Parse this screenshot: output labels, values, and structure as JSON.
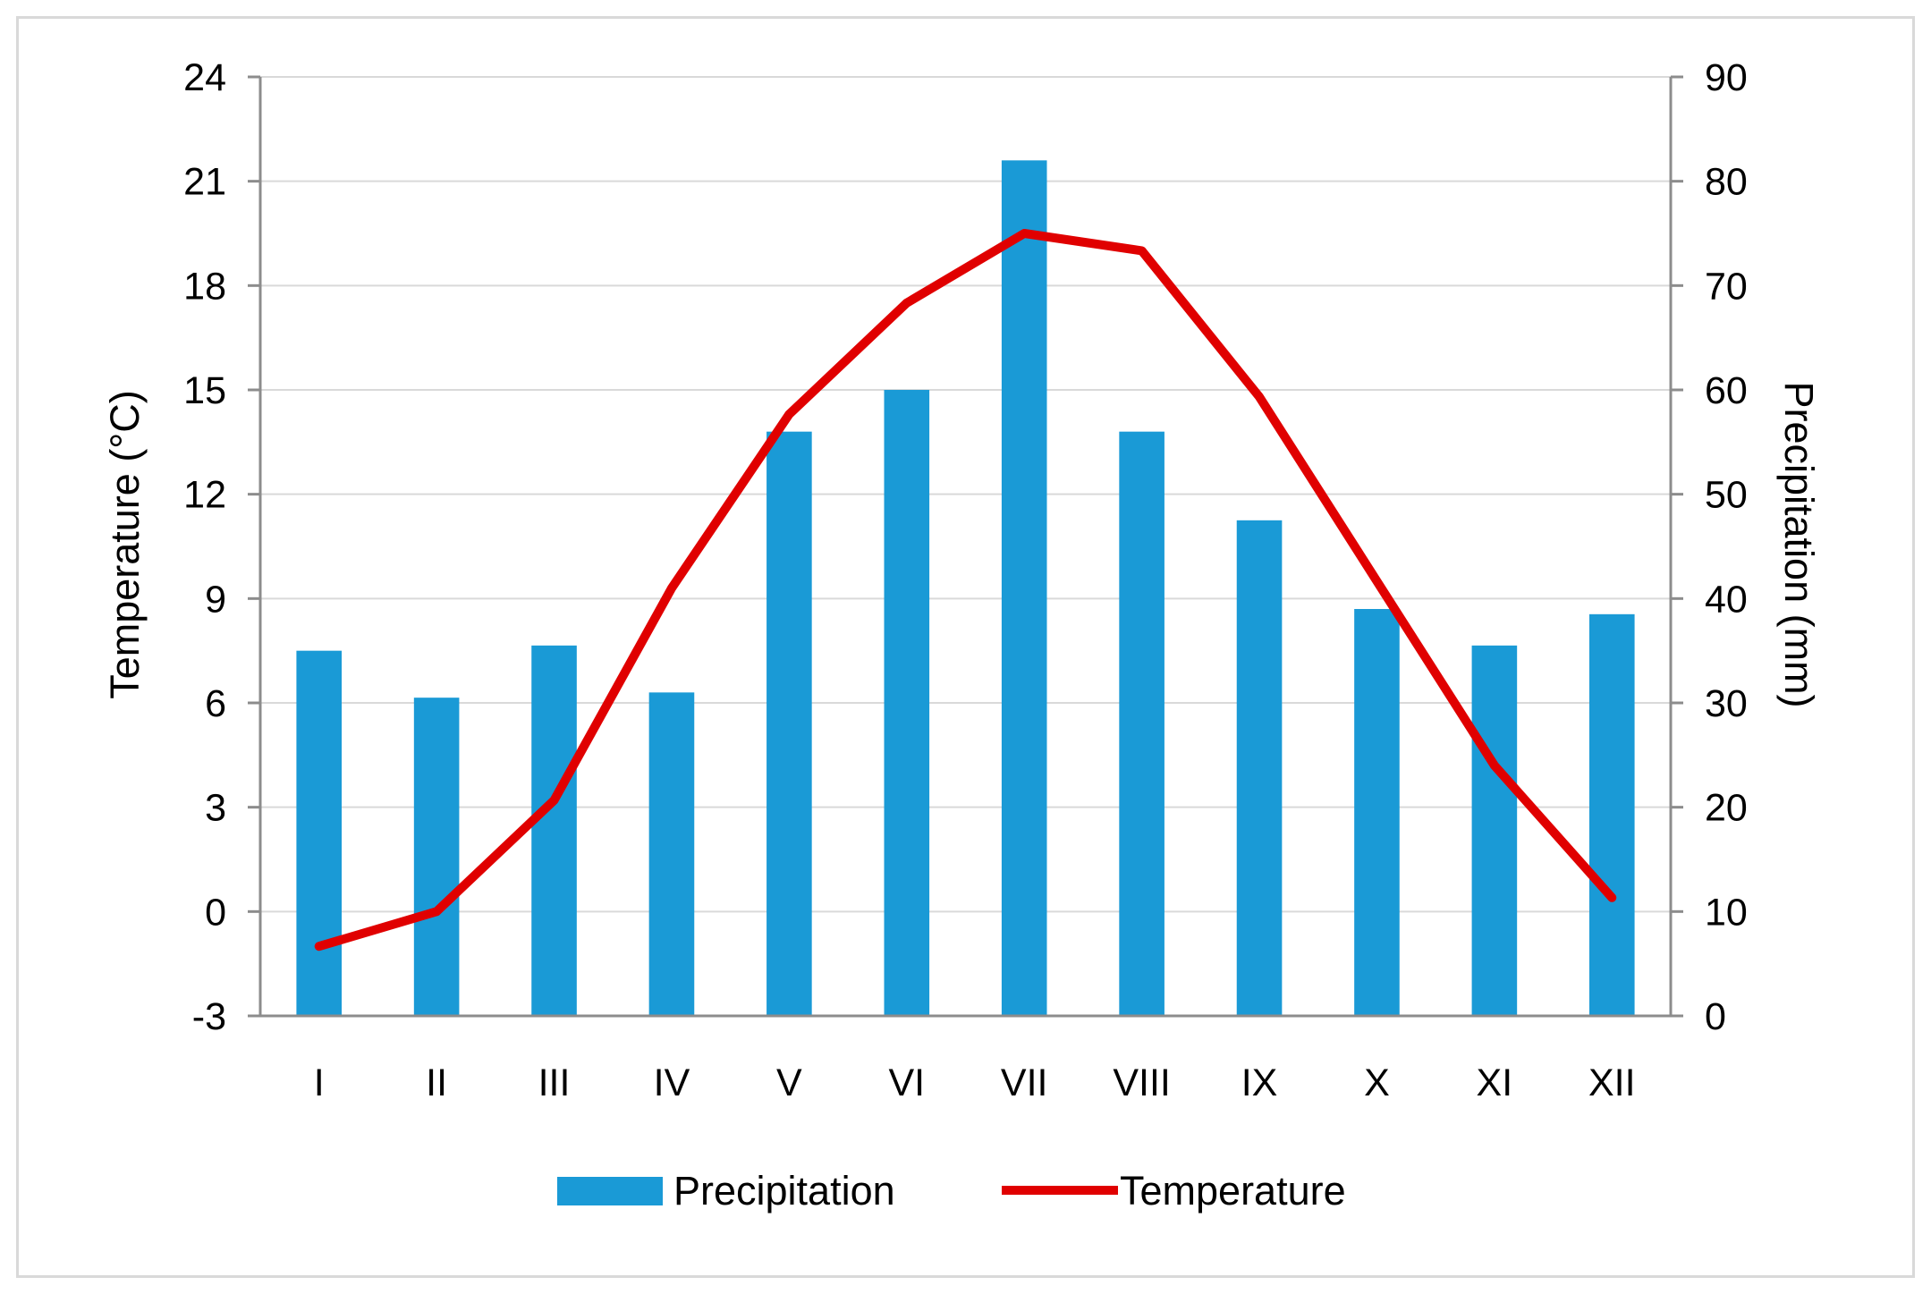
{
  "chart_data": {
    "type": "bar-line-combo",
    "categories": [
      "I",
      "II",
      "III",
      "IV",
      "V",
      "VI",
      "VII",
      "VIII",
      "IX",
      "X",
      "XI",
      "XII"
    ],
    "series": [
      {
        "name": "Precipitation",
        "type": "bar",
        "axis": "right",
        "color": "#1a9ad6",
        "values": [
          35,
          30.5,
          35.5,
          31,
          56,
          60,
          82,
          56,
          47.5,
          39,
          35.5,
          38.5
        ]
      },
      {
        "name": "Temperature",
        "type": "line",
        "axis": "left",
        "color": "#e00000",
        "values": [
          -1,
          0,
          3.2,
          9.3,
          14.3,
          17.5,
          19.5,
          19,
          14.8,
          9.5,
          4.2,
          0.4
        ]
      }
    ],
    "left_axis": {
      "label": "Temperature (°C)",
      "min": -3,
      "max": 24,
      "ticks": [
        "24",
        "21",
        "18",
        "15",
        "12",
        "9",
        "6",
        "3",
        "0",
        "-3"
      ]
    },
    "right_axis": {
      "label": "Precipitation (mm)",
      "min": 0,
      "max": 90,
      "ticks": [
        "90",
        "80",
        "70",
        "60",
        "50",
        "40",
        "30",
        "20",
        "10",
        "0"
      ]
    },
    "grid": true,
    "legend_position": "bottom",
    "legend": {
      "precipitation_label": "Precipitation",
      "temperature_label": "Temperature"
    }
  }
}
